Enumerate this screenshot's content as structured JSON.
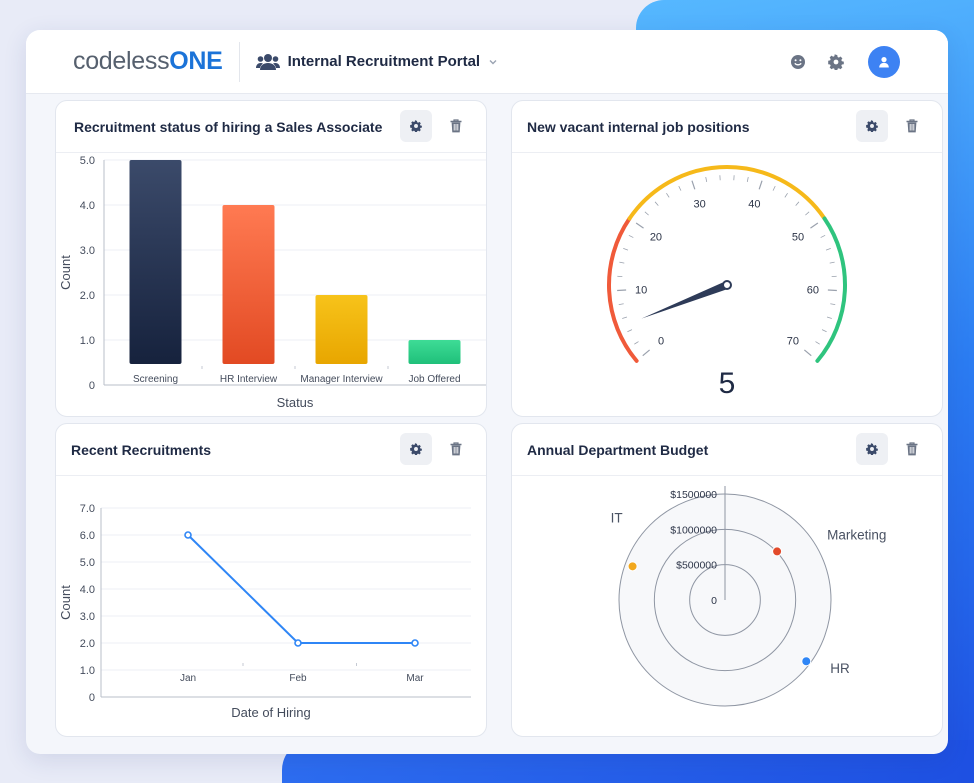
{
  "header": {
    "logo_text_a": "codeless",
    "logo_text_b": "ONE",
    "portal_title": "Internal Recruitment Portal",
    "icons": [
      "smile-icon",
      "gear-icon",
      "user-icon"
    ]
  },
  "cards": {
    "status": {
      "title": "Recruitment status of hiring a Sales Associate"
    },
    "gauge": {
      "title": "New vacant internal job positions"
    },
    "recent": {
      "title": "Recent Recruitments"
    },
    "budget": {
      "title": "Annual Department Budget"
    }
  },
  "chart_data": [
    {
      "type": "bar",
      "title": "Recruitment status of hiring a Sales Associate",
      "categories": [
        "Screening",
        "HR Interview",
        "Manager Interview",
        "Job Offered"
      ],
      "values": [
        5,
        4,
        2,
        1
      ],
      "colors": [
        [
          "#3b4a6a",
          "#16223d"
        ],
        [
          "#ff7a52",
          "#e24a23"
        ],
        [
          "#f7c31a",
          "#e8a600"
        ],
        [
          "#3edc96",
          "#1fc07a"
        ]
      ],
      "xlabel": "Status",
      "ylabel": "Count",
      "ylim": [
        0,
        5
      ],
      "yticks": [
        "0",
        "1.0",
        "2.0",
        "3.0",
        "4.0",
        "5.0"
      ],
      "grid": true
    },
    {
      "type": "gauge",
      "title": "New vacant internal job positions",
      "value": 5,
      "value_label": "5",
      "min": 0,
      "max": 70,
      "tick_labels": [
        "0",
        "10",
        "20",
        "30",
        "40",
        "50",
        "60",
        "70"
      ],
      "bands": [
        {
          "from": 0,
          "to": 20,
          "color": "#f05a3a"
        },
        {
          "from": 20,
          "to": 50,
          "color": "#f6b91a"
        },
        {
          "from": 50,
          "to": 70,
          "color": "#2fc47e"
        }
      ]
    },
    {
      "type": "line",
      "title": "Recent Recruitments",
      "categories": [
        "Jan",
        "Feb",
        "Mar"
      ],
      "values": [
        6,
        2,
        2
      ],
      "color": "#2f86f6",
      "xlabel": "Date of Hiring",
      "ylabel": "Count",
      "ylim": [
        0,
        7
      ],
      "yticks": [
        "0",
        "1.0",
        "2.0",
        "3.0",
        "4.0",
        "5.0",
        "6.0",
        "7.0"
      ],
      "grid": true
    },
    {
      "type": "polar-scatter",
      "title": "Annual Department Budget",
      "rlim": [
        0,
        1500000
      ],
      "r_ticks": [
        "0",
        "$500000",
        "$1000000",
        "$1500000"
      ],
      "points": [
        {
          "label": "IT",
          "value": 1450000,
          "color": "#f2a81d"
        },
        {
          "label": "Marketing",
          "value": 1050000,
          "color": "#e24a2a"
        },
        {
          "label": "HR",
          "value": 1500000,
          "color": "#2f86f6"
        }
      ]
    }
  ]
}
